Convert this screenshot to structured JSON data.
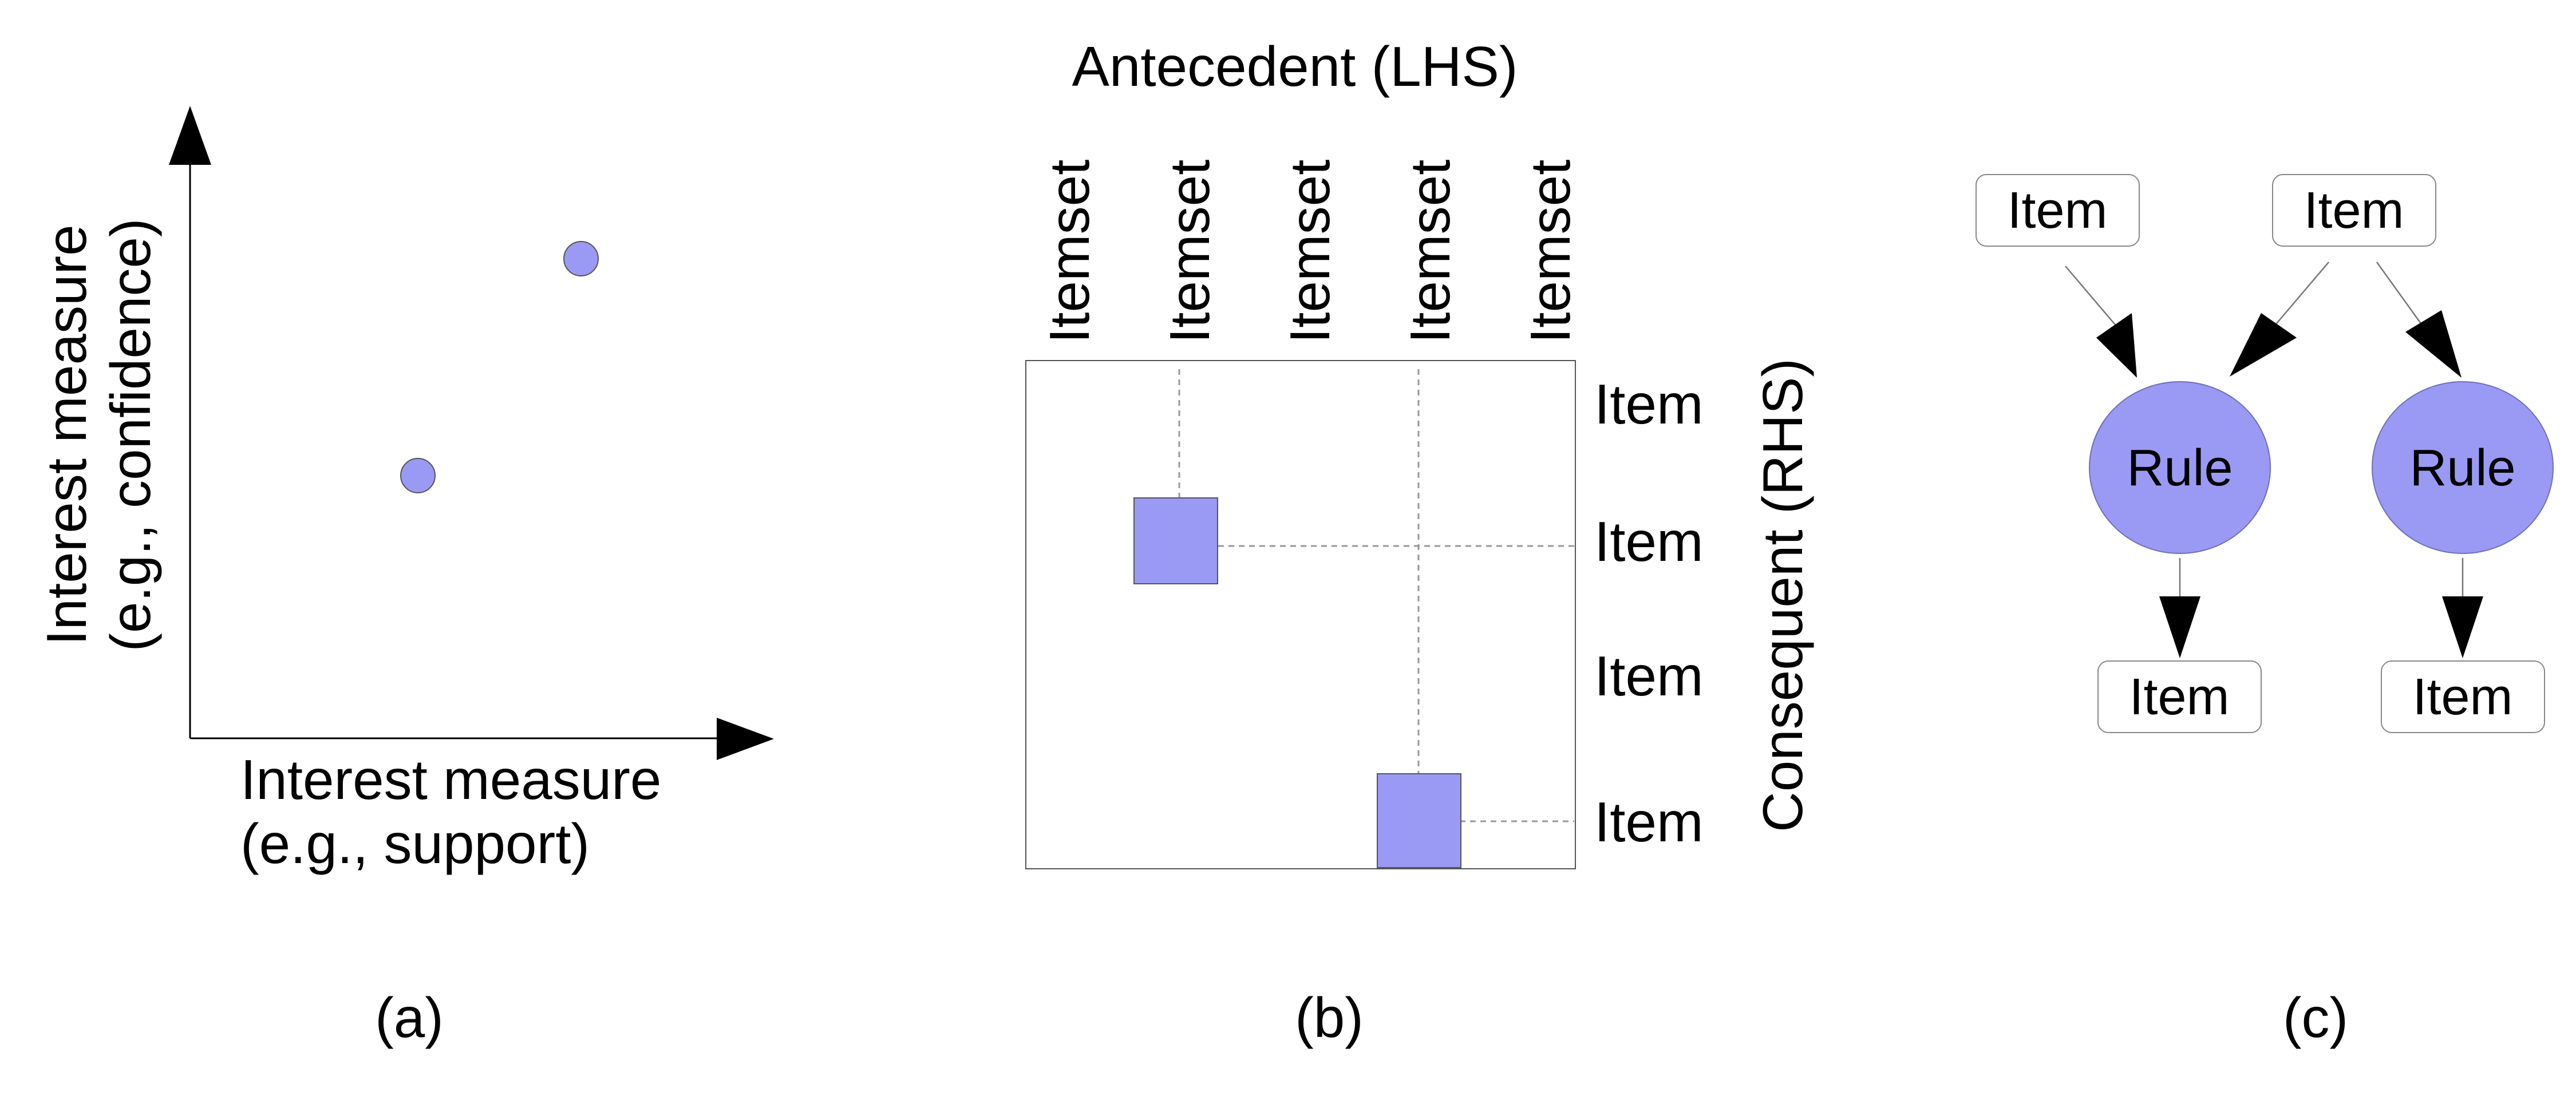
{
  "colors": {
    "accent": "#9a9af5",
    "line": "#000000",
    "guide": "#999999",
    "frame": "#555555"
  },
  "panel_a": {
    "caption": "(a)",
    "x_label_line1": "Interest measure",
    "x_label_line2": "(e.g., support)",
    "y_label_line1": "Interest measure",
    "y_label_line2": "(e.g., confidence)",
    "points_count": 2
  },
  "panel_b": {
    "caption": "(b)",
    "top_label": "Antecedent (LHS)",
    "side_label": "Consequent (RHS)",
    "columns": [
      "Itemset",
      "Itemset",
      "Itemset",
      "Itemset",
      "Itemset"
    ],
    "rows": [
      "Item",
      "Item",
      "Item",
      "Item"
    ]
  },
  "panel_c": {
    "caption": "(c)",
    "top_items": [
      "Item",
      "Item"
    ],
    "rules": [
      "Rule",
      "Rule"
    ],
    "bottom_items": [
      "Item",
      "Item"
    ]
  }
}
